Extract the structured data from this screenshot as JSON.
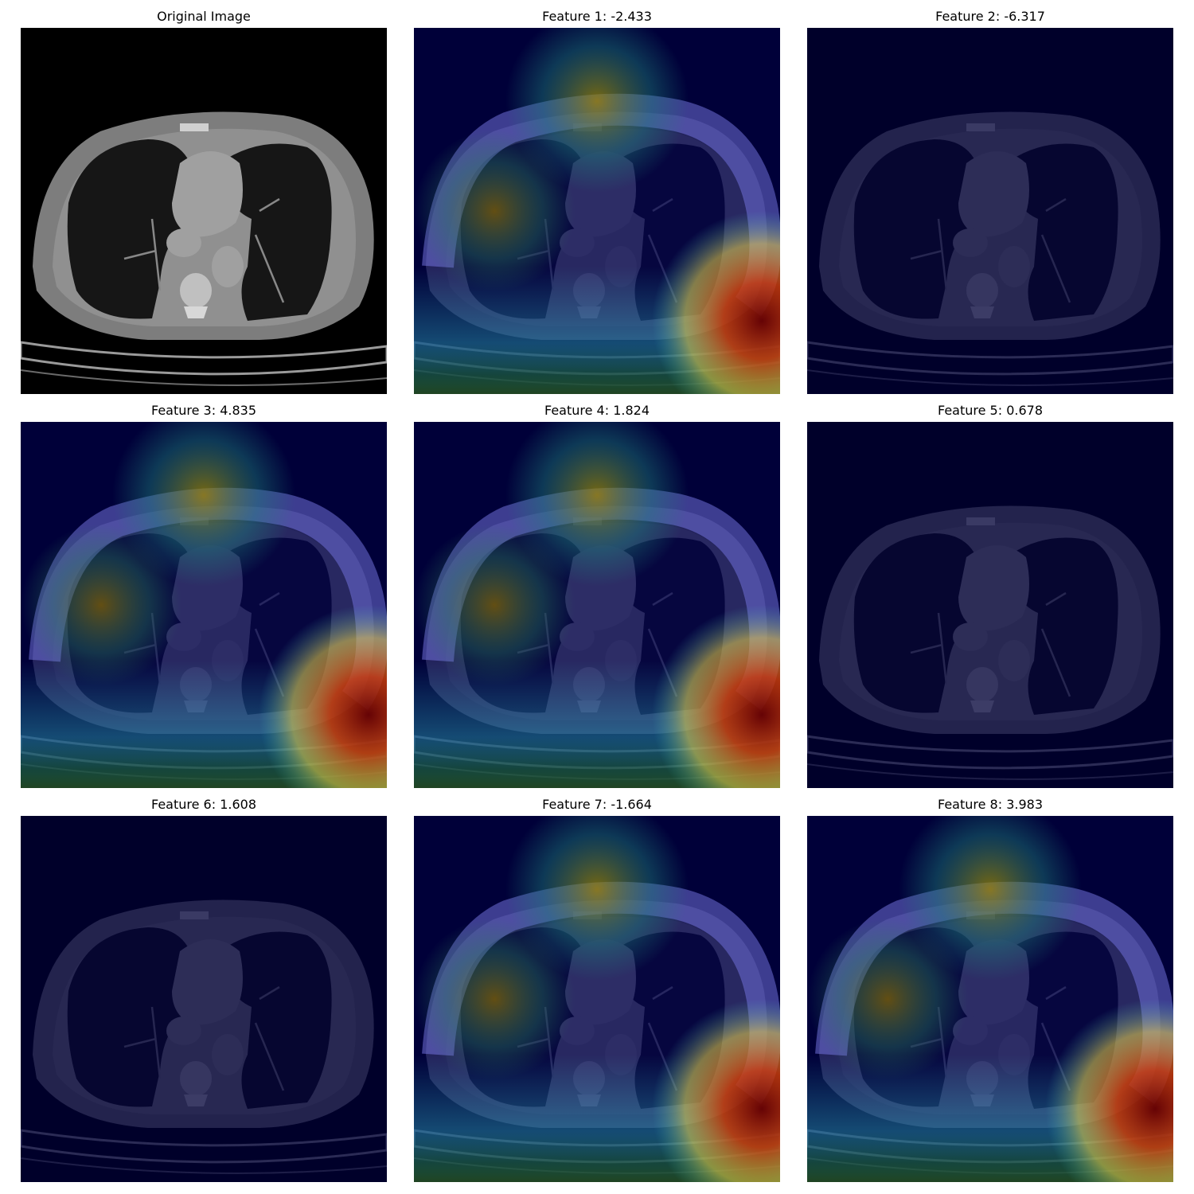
{
  "panels": [
    {
      "title": "Original Image",
      "overlay": "none"
    },
    {
      "title": "Feature 1: -2.433",
      "overlay": "heatmap"
    },
    {
      "title": "Feature 2: -6.317",
      "overlay": "dark"
    },
    {
      "title": "Feature 3: 4.835",
      "overlay": "heatmap"
    },
    {
      "title": "Feature 4: 1.824",
      "overlay": "heatmap"
    },
    {
      "title": "Feature 5: 0.678",
      "overlay": "dark"
    },
    {
      "title": "Feature 6: 1.608",
      "overlay": "dark"
    },
    {
      "title": "Feature 7: -1.664",
      "overlay": "heatmap"
    },
    {
      "title": "Feature 8: 3.983",
      "overlay": "heatmap"
    }
  ],
  "colors": {
    "heatmap_low": "#00004f",
    "heatmap_mid": "#1f4fd0",
    "heatmap_high": "#cc2200",
    "ct_body": "#8a8a8a",
    "ct_lung": "#181818"
  }
}
